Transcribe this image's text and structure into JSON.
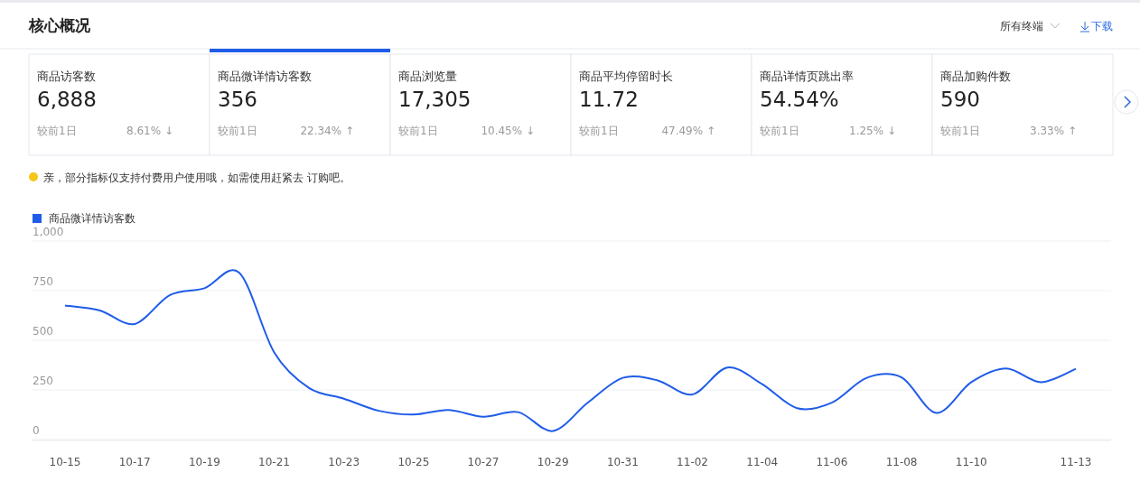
{
  "chart_data": [
    {
      "type": "other",
      "title": "核心概况",
      "annotations": [
        "所有终端",
        "下载",
        "商品访客数",
        "6,888",
        "较前1日",
        "8.61% ↓",
        "商品微详情访客数",
        "356",
        "较前1日",
        "22.34% ↑",
        "商品浏览量",
        "17,305",
        "较前1日",
        "10.45% ↓",
        "商品平均停留时长",
        "11.72",
        "较前1日",
        "47.49% ↑",
        "商品详情页跳出率",
        "54.54%",
        "较前1日",
        "1.25% ↓",
        "商品加购件数",
        "590",
        "较前1日",
        "3.33% ↑",
        "亲，部分指标仅支持付费用户使用哦，如需使用赶紧去 订购吧。"
      ]
    },
    {
      "type": "line",
      "categories": [
        "10-15",
        null,
        "10-17",
        null,
        "10-19",
        null,
        "10-21",
        null,
        "10-23",
        null,
        "10-25",
        null,
        "10-27",
        null,
        "10-29",
        null,
        "10-31",
        null,
        "11-02",
        null,
        "11-04",
        null,
        "11-06",
        null,
        "11-08",
        null,
        "11-10",
        null,
        null,
        "11-13"
      ],
      "series": [
        {
          "name": "商品微详情访客数",
          "color": "#1f5ce8",
          "values": [
            675,
            650,
            582,
            727,
            762,
            840,
            439,
            260,
            206,
            145,
            126,
            149,
            115,
            138,
            43,
            186,
            311,
            298,
            227,
            363,
            279,
            158,
            186,
            311,
            313,
            134,
            289,
            358,
            289,
            356
          ]
        }
      ],
      "ylim": [
        0,
        1000
      ],
      "yticks": [
        0,
        250,
        500,
        750,
        {
          "value": 1000,
          "label": "1,000"
        }
      ],
      "grid": "y",
      "legend": "top left",
      "marker": "none",
      "line_style": "solid"
    }
  ]
}
